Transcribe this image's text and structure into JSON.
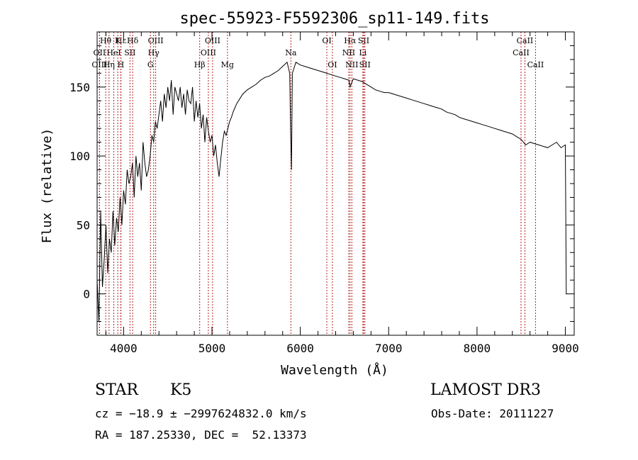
{
  "chart_data": {
    "type": "line",
    "title": "spec-55923-F5592306_sp11-149.fits",
    "xlabel": "Wavelength (Å)",
    "ylabel": "Flux (relative)",
    "xlim": [
      3700,
      9100
    ],
    "ylim": [
      -30,
      190
    ],
    "x_ticks": [
      4000,
      5000,
      6000,
      7000,
      8000,
      9000
    ],
    "y_ticks": [
      0,
      50,
      100,
      150
    ],
    "grid": false,
    "series": [
      {
        "x": [
          3700,
          3720,
          3740,
          3760,
          3780,
          3800,
          3820,
          3840,
          3860,
          3880,
          3900,
          3920,
          3940,
          3960,
          3980,
          4000,
          4020,
          4040,
          4060,
          4080,
          4100,
          4120,
          4140,
          4160,
          4180,
          4200,
          4220,
          4240,
          4260,
          4280,
          4300,
          4320,
          4340,
          4360,
          4380,
          4400,
          4420,
          4440,
          4460,
          4480,
          4500,
          4520,
          4540,
          4560,
          4580,
          4600,
          4620,
          4640,
          4660,
          4680,
          4700,
          4720,
          4740,
          4760,
          4780,
          4800,
          4820,
          4840,
          4860,
          4880,
          4900,
          4920,
          4940,
          4960,
          4980,
          5000,
          5020,
          5040,
          5060,
          5080,
          5100,
          5120,
          5140,
          5160,
          5180,
          5200,
          5220,
          5240,
          5260,
          5280,
          5300,
          5350,
          5400,
          5450,
          5500,
          5550,
          5600,
          5650,
          5700,
          5750,
          5800,
          5850,
          5880,
          5890,
          5900,
          5910,
          5950,
          6000,
          6050,
          6100,
          6150,
          6200,
          6250,
          6300,
          6350,
          6400,
          6450,
          6500,
          6550,
          6563,
          6600,
          6650,
          6700,
          6750,
          6800,
          6850,
          6900,
          6950,
          7000,
          7050,
          7100,
          7150,
          7200,
          7250,
          7300,
          7350,
          7400,
          7450,
          7500,
          7550,
          7600,
          7650,
          7700,
          7750,
          7800,
          7850,
          7900,
          7950,
          8000,
          8050,
          8100,
          8150,
          8200,
          8250,
          8300,
          8350,
          8400,
          8450,
          8500,
          8550,
          8600,
          8650,
          8700,
          8750,
          8800,
          8850,
          8900,
          8950,
          9000,
          9010
        ],
        "y": [
          10,
          -20,
          60,
          5,
          25,
          50,
          15,
          40,
          30,
          60,
          35,
          55,
          45,
          70,
          50,
          75,
          65,
          90,
          80,
          85,
          95,
          70,
          100,
          85,
          95,
          75,
          110,
          95,
          85,
          90,
          100,
          115,
          110,
          125,
          120,
          130,
          140,
          125,
          145,
          135,
          150,
          140,
          155,
          130,
          150,
          145,
          140,
          150,
          135,
          145,
          130,
          148,
          140,
          138,
          150,
          125,
          140,
          128,
          138,
          120,
          130,
          110,
          128,
          118,
          110,
          115,
          100,
          108,
          95,
          85,
          98,
          110,
          118,
          115,
          120,
          125,
          128,
          132,
          135,
          138,
          140,
          145,
          148,
          150,
          152,
          155,
          157,
          158,
          160,
          162,
          165,
          168,
          160,
          120,
          90,
          160,
          168,
          166,
          165,
          164,
          163,
          162,
          161,
          160,
          159,
          158,
          157,
          156,
          155,
          150,
          156,
          155,
          154,
          152,
          150,
          148,
          147,
          146,
          146,
          145,
          144,
          143,
          142,
          141,
          140,
          139,
          138,
          137,
          136,
          135,
          134,
          132,
          131,
          130,
          128,
          127,
          126,
          125,
          124,
          123,
          122,
          121,
          120,
          119,
          118,
          117,
          116,
          114,
          112,
          108,
          110,
          109,
          108,
          107,
          106,
          108,
          110,
          106,
          108,
          0
        ]
      }
    ],
    "spectral_lines": [
      {
        "label": "Hθ",
        "x": 3797,
        "row": 1
      },
      {
        "label": "OII",
        "x": 3727,
        "row": 2
      },
      {
        "label": "OIII",
        "x": 3727,
        "row": 3
      },
      {
        "label": "K",
        "x": 3934,
        "row": 1
      },
      {
        "label": "Hε",
        "x": 3970,
        "row": 1
      },
      {
        "label": "HeI",
        "x": 3889,
        "row": 2
      },
      {
        "label": "Hη",
        "x": 3835,
        "row": 3
      },
      {
        "label": "H",
        "x": 3968,
        "row": 3
      },
      {
        "label": "SII",
        "x": 4072,
        "row": 2
      },
      {
        "label": "Hδ",
        "x": 4102,
        "row": 1
      },
      {
        "label": "OIII",
        "x": 4363,
        "row": 1
      },
      {
        "label": "Hγ",
        "x": 4340,
        "row": 2
      },
      {
        "label": "G",
        "x": 4304,
        "row": 3
      },
      {
        "label": "Hβ",
        "x": 4861,
        "row": 3
      },
      {
        "label": "OIII",
        "x": 5007,
        "row": 1
      },
      {
        "label": "OIII",
        "x": 4959,
        "row": 2
      },
      {
        "label": "Mg",
        "x": 5175,
        "row": 3
      },
      {
        "label": "Na",
        "x": 5893,
        "row": 2
      },
      {
        "label": "OI",
        "x": 6300,
        "row": 1
      },
      {
        "label": "OI",
        "x": 6363,
        "row": 3
      },
      {
        "label": "Hα",
        "x": 6563,
        "row": 1
      },
      {
        "label": "SII",
        "x": 6717,
        "row": 1
      },
      {
        "label": "NII",
        "x": 6548,
        "row": 2
      },
      {
        "label": "Li",
        "x": 6708,
        "row": 2
      },
      {
        "label": "NII",
        "x": 6583,
        "row": 3
      },
      {
        "label": "SII",
        "x": 6731,
        "row": 3
      },
      {
        "label": "CaII",
        "x": 8542,
        "row": 1
      },
      {
        "label": "CaII",
        "x": 8498,
        "row": 2
      },
      {
        "label": "CaII",
        "x": 8662,
        "row": 3
      }
    ]
  },
  "info": {
    "object_type": "STAR",
    "subclass": "K5",
    "survey": "LAMOST DR3",
    "cz_line": "cz = −18.9 ± −2997624832.0 km/s",
    "obs_date_line": "Obs-Date: 20111227",
    "coords_line": "RA = 187.25330, DEC =  52.13373"
  },
  "colors": {
    "spectrum": "#000000",
    "line_markers": "#b22222"
  }
}
